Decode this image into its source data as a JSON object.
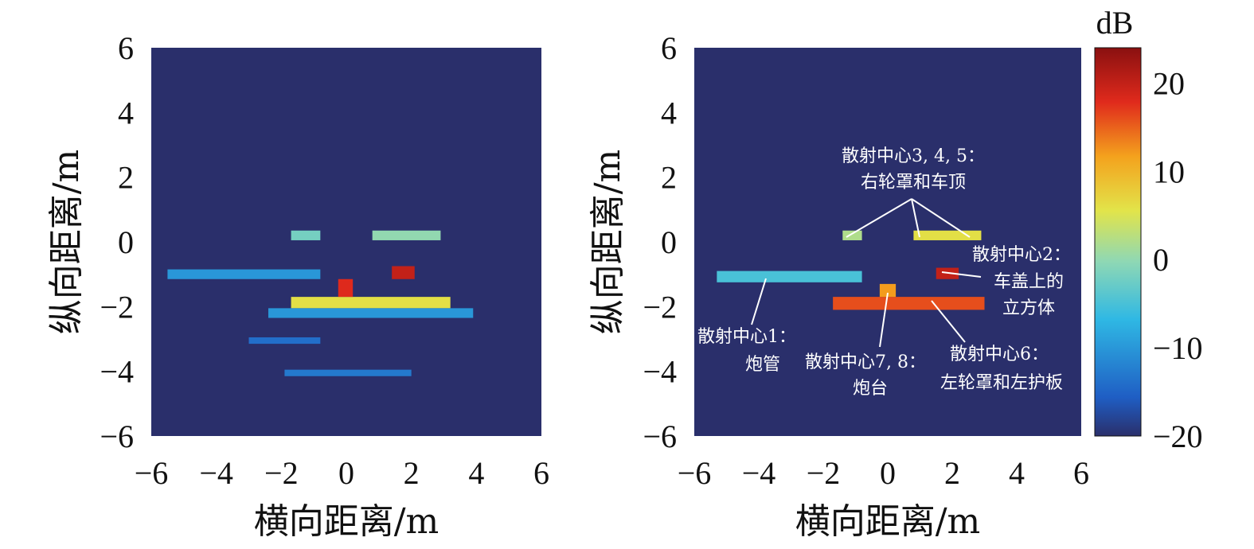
{
  "chart_data": [
    {
      "type": "heatmap",
      "title": "",
      "xlabel": "横向距离/m",
      "ylabel": "纵向距离/m",
      "xlim": [
        -6,
        6
      ],
      "ylim": [
        -6,
        6
      ],
      "xticks": [
        -6,
        -4,
        -2,
        0,
        2,
        4,
        6
      ],
      "yticks": [
        -6,
        -4,
        -2,
        0,
        2,
        4,
        6
      ],
      "xtick_labels": [
        "−6",
        "−4",
        "−2",
        "0",
        "2",
        "4",
        "6"
      ],
      "ytick_labels": [
        "−6",
        "−4",
        "−2",
        "0",
        "2",
        "4",
        "6"
      ],
      "background_db": -20,
      "regions_db": [
        {
          "x": [
            -1.7,
            3.2
          ],
          "y": [
            -2.05,
            -1.7
          ],
          "db": 6
        },
        {
          "x": [
            -0.25,
            0.2
          ],
          "y": [
            -1.7,
            -1.15
          ],
          "db": 18
        },
        {
          "x": [
            1.4,
            2.1
          ],
          "y": [
            -1.15,
            -0.75
          ],
          "db": 20
        },
        {
          "x": [
            0.8,
            2.9
          ],
          "y": [
            0.05,
            0.35
          ],
          "db": 0
        },
        {
          "x": [
            -1.7,
            -0.8
          ],
          "y": [
            0.05,
            0.35
          ],
          "db": -2
        },
        {
          "x": [
            -5.5,
            -0.8
          ],
          "y": [
            -1.15,
            -0.85
          ],
          "db": -10
        },
        {
          "x": [
            -2.4,
            3.9
          ],
          "y": [
            -2.35,
            -2.05
          ],
          "db": -10
        },
        {
          "x": [
            -3.0,
            -0.8
          ],
          "y": [
            -3.15,
            -2.95
          ],
          "db": -14
        },
        {
          "x": [
            -1.9,
            2.0
          ],
          "y": [
            -4.15,
            -3.95
          ],
          "db": -13
        }
      ]
    },
    {
      "type": "heatmap",
      "title": "",
      "xlabel": "横向距离/m",
      "ylabel": "纵向距离/m",
      "xlim": [
        -6,
        6
      ],
      "ylim": [
        -6,
        6
      ],
      "xticks": [
        -6,
        -4,
        -2,
        0,
        2,
        4,
        6
      ],
      "yticks": [
        -6,
        -4,
        -2,
        0,
        2,
        4,
        6
      ],
      "xtick_labels": [
        "−6",
        "−4",
        "−2",
        "0",
        "2",
        "4",
        "6"
      ],
      "ytick_labels": [
        "−6",
        "−4",
        "−2",
        "0",
        "2",
        "4",
        "6"
      ],
      "colorbar": {
        "label": "dB",
        "range": [
          -20,
          24
        ],
        "ticks": [
          -20,
          -10,
          0,
          10,
          20
        ],
        "tick_labels": [
          "−20",
          "−10",
          "0",
          "10",
          "20"
        ]
      },
      "background_db": -20,
      "regions_db": [
        {
          "x": [
            -1.7,
            3.0
          ],
          "y": [
            -2.1,
            -1.7
          ],
          "db": 16
        },
        {
          "x": [
            -0.25,
            0.25
          ],
          "y": [
            -1.7,
            -1.3
          ],
          "db": 12
        },
        {
          "x": [
            1.5,
            2.2
          ],
          "y": [
            -1.15,
            -0.8
          ],
          "db": 20
        },
        {
          "x": [
            0.8,
            2.9
          ],
          "y": [
            0.05,
            0.35
          ],
          "db": 6
        },
        {
          "x": [
            -1.4,
            -0.8
          ],
          "y": [
            0.05,
            0.35
          ],
          "db": 2
        },
        {
          "x": [
            -5.3,
            -0.8
          ],
          "y": [
            -1.25,
            -0.9
          ],
          "db": -5
        }
      ],
      "annotations": [
        {
          "lines": [
            "散射中心3, 4, 5：",
            "右轮罩和车顶"
          ]
        },
        {
          "lines": [
            "散射中心2：",
            "车盖上的",
            "立方体"
          ]
        },
        {
          "lines": [
            "散射中心1：",
            "炮管"
          ]
        },
        {
          "lines": [
            "散射中心7, 8：",
            "炮台"
          ]
        },
        {
          "lines": [
            "散射中心6：",
            "左轮罩和左护板"
          ]
        }
      ]
    }
  ]
}
